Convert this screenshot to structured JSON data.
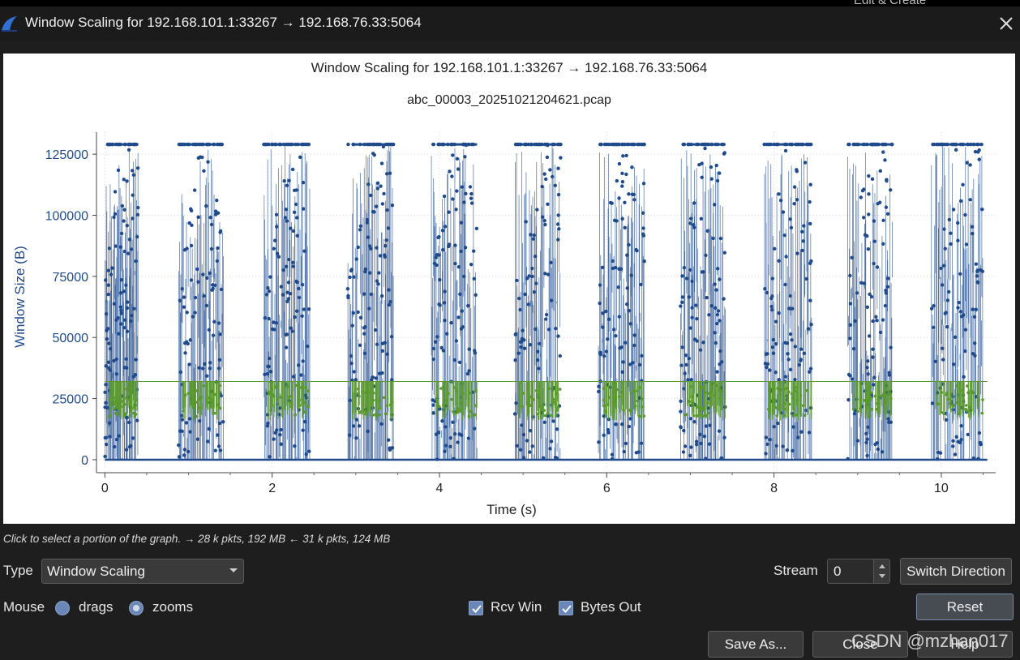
{
  "window": {
    "title": "Window Scaling for 192.168.101.1:33267 → 192.168.76.33:5064",
    "top_strip_hint": "Edit & Create"
  },
  "icons": {
    "app": "wireshark-fin-icon",
    "close": "close-icon",
    "dropdown": "chevron-down-icon",
    "spin": "spin-arrows-icon",
    "check": "checkmark-icon"
  },
  "colors": {
    "series_rcv": "#1f4a8c",
    "series_bytes": "#5a9a2a",
    "axis_text": "#1f4a8c"
  },
  "chart_data": {
    "type": "scatter",
    "title": "Window Scaling for 192.168.101.1:33267 → 192.168.76.33:5064",
    "subtitle": "abc_00003_20251021204621.pcap",
    "xlabel": "Time (s)",
    "ylabel": "Window Size (B)",
    "xlim": [
      -0.1,
      10.65
    ],
    "ylim": [
      -4000,
      134000
    ],
    "x_ticks": [
      0,
      2,
      4,
      6,
      8,
      10
    ],
    "y_ticks": [
      0,
      25000,
      50000,
      75000,
      100000,
      125000
    ],
    "grid": true,
    "legend": "none",
    "bursts": [
      {
        "start": 0.0,
        "end": 0.4
      },
      {
        "start": 0.88,
        "end": 1.42
      },
      {
        "start": 1.9,
        "end": 2.45
      },
      {
        "start": 2.9,
        "end": 3.45
      },
      {
        "start": 3.9,
        "end": 4.45
      },
      {
        "start": 4.9,
        "end": 5.45
      },
      {
        "start": 5.9,
        "end": 6.45
      },
      {
        "start": 6.88,
        "end": 7.42
      },
      {
        "start": 7.88,
        "end": 8.45
      },
      {
        "start": 8.88,
        "end": 9.42
      },
      {
        "start": 9.88,
        "end": 10.5
      }
    ],
    "series": [
      {
        "name": "Rcv Win",
        "peak": 129000,
        "idle": 0
      },
      {
        "name": "Bytes Out",
        "peak": 32000,
        "idle": 0
      }
    ]
  },
  "status": {
    "hint": "Click to select a portion of the graph. → 28 k pkts, 192 MB ← 31 k pkts, 124 MB"
  },
  "controls": {
    "type_label": "Type",
    "type_value": "Window Scaling",
    "stream_label": "Stream",
    "stream_value": "0",
    "switch_direction": "Switch Direction",
    "mouse_label": "Mouse",
    "drags_label": "drags",
    "zooms_label": "zooms",
    "rcv_win_label": "Rcv Win",
    "bytes_out_label": "Bytes Out",
    "reset": "Reset",
    "save_as": "Save As...",
    "close": "Close",
    "help": "Help"
  },
  "watermark": "CSDN @mzhan017"
}
